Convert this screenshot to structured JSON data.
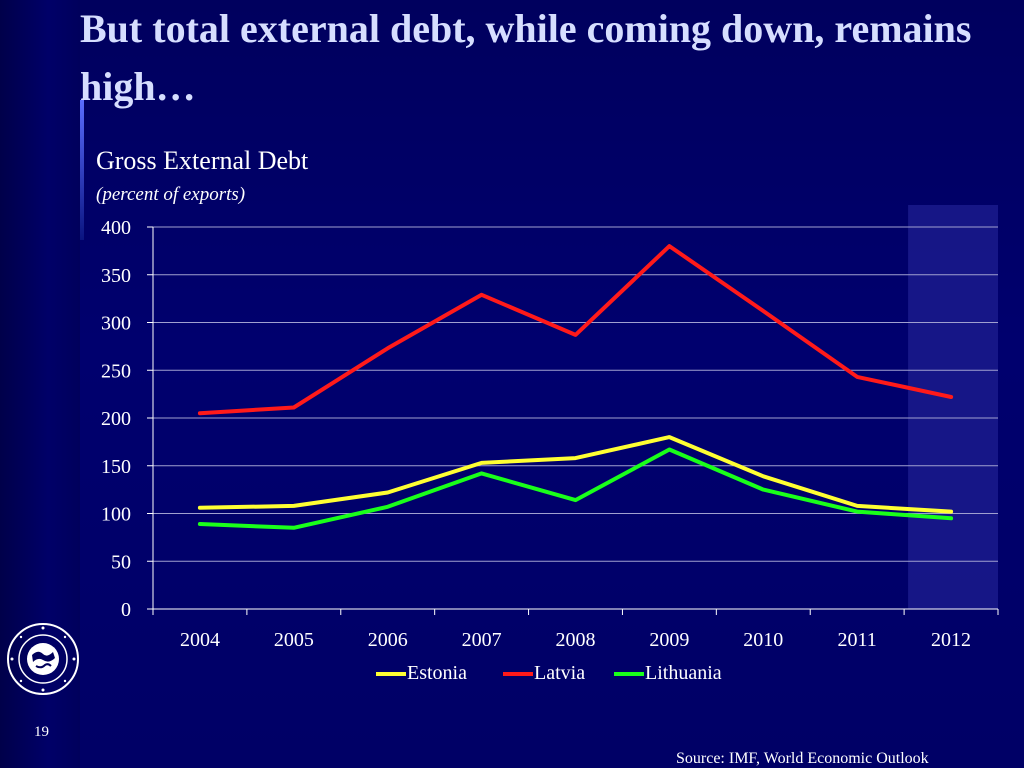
{
  "slide": {
    "title": "But total external debt, while coming down, remains high…",
    "page_number": "19",
    "source": "Source: IMF, World Economic Outlook"
  },
  "chart_data": {
    "type": "line",
    "title": "Gross External Debt",
    "subtitle": "(percent of  exports)",
    "xlabel": "",
    "ylabel": "",
    "x": [
      "2004",
      "2005",
      "2006",
      "2007",
      "2008",
      "2009",
      "2010",
      "2011",
      "2012"
    ],
    "ylim": [
      0,
      400
    ],
    "yticks": [
      0,
      50,
      100,
      150,
      200,
      250,
      300,
      350,
      400
    ],
    "grid": true,
    "legend_position": "bottom",
    "highlight_category": "2012",
    "series": [
      {
        "name": "Estonia",
        "color": "#ffff33",
        "values": [
          106,
          108,
          122,
          153,
          158,
          180,
          139,
          108,
          102
        ]
      },
      {
        "name": "Latvia",
        "color": "#ff1a1a",
        "values": [
          205,
          211,
          273,
          329,
          287,
          380,
          312,
          243,
          222
        ]
      },
      {
        "name": "Lithuania",
        "color": "#1aff1a",
        "values": [
          89,
          85,
          107,
          142,
          114,
          167,
          125,
          102,
          95
        ]
      }
    ],
    "colors": {
      "background": "#000066",
      "grid": "#a0a0d0",
      "highlight": "#1a1a8c"
    }
  }
}
